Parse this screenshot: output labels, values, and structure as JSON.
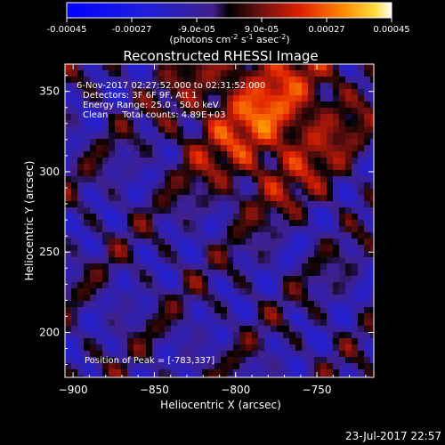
{
  "colorbar": {
    "ticks": [
      "-0.00045",
      "-0.00027",
      "-9.0e-05",
      "9.0e-05",
      "0.00027",
      "0.00045"
    ],
    "tick_values": [
      -0.00045,
      -0.00027,
      -9e-05,
      9e-05,
      0.00027,
      0.00045
    ],
    "range": [
      -0.00045,
      0.00045
    ],
    "units_prefix": "(photons cm",
    "units_exp1": "-2",
    "units_mid": " s",
    "units_exp2": "-1",
    "units_mid2": " asec",
    "units_exp3": "-2",
    "units_suffix": ")"
  },
  "chart_data": {
    "type": "heatmap",
    "title": "Reconstructed RHESSI Image",
    "xlabel": "Heliocentric X (arcsec)",
    "ylabel": "Heliocentric Y (arcsec)",
    "xlim": [
      -905,
      -715
    ],
    "ylim": [
      172,
      367
    ],
    "x_ticks": [
      -900,
      -850,
      -800,
      -750
    ],
    "y_ticks": [
      200,
      250,
      300,
      350
    ],
    "x_tick_labels": [
      "−900",
      "−850",
      "−800",
      "−750"
    ],
    "y_tick_labels": [
      "200",
      "250",
      "300",
      "350"
    ],
    "peak": [
      -783,
      337
    ],
    "annotations": [
      "6-Nov-2017 02:27:52.000 to 02:31:52.000",
      "Detectors: 3F 6F 9F, Att 1",
      "Energy Range: 25.0 - 50.0 keV",
      "Clean     Total counts: 4.89E+03"
    ],
    "peak_label": "Position of Peak = [-783,337]"
  },
  "footer": {
    "timestamp": "23-Jul-2017 22:57"
  },
  "colors": {
    "background": "#000000",
    "foreground": "#ffffff"
  }
}
